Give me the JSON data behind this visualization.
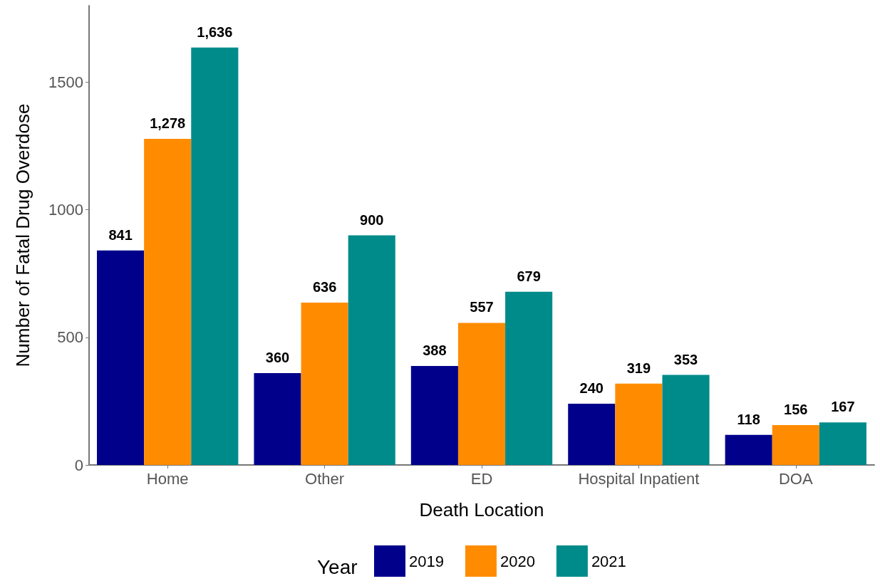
{
  "chart_data": {
    "type": "bar",
    "xlabel": "Death Location",
    "ylabel": "Number of Fatal Drug Overdose",
    "legend_title": "Year",
    "categories": [
      "Home",
      "Other",
      "ED",
      "Hospital Inpatient",
      "DOA"
    ],
    "series": [
      {
        "name": "2019",
        "color": "#00008b",
        "values": [
          841,
          360,
          388,
          240,
          118
        ],
        "value_labels": [
          "841",
          "360",
          "388",
          "240",
          "118"
        ]
      },
      {
        "name": "2020",
        "color": "#ff8c00",
        "values": [
          1278,
          636,
          557,
          319,
          156
        ],
        "value_labels": [
          "1,278",
          "636",
          "557",
          "319",
          "156"
        ]
      },
      {
        "name": "2021",
        "color": "#008b8b",
        "values": [
          1636,
          900,
          679,
          353,
          167
        ],
        "value_labels": [
          "1,636",
          "900",
          "679",
          "353",
          "167"
        ]
      }
    ],
    "ylim": [
      0,
      1800
    ],
    "yticks": [
      0,
      500,
      1000,
      1500
    ],
    "grid": false,
    "legend": "bottom"
  }
}
